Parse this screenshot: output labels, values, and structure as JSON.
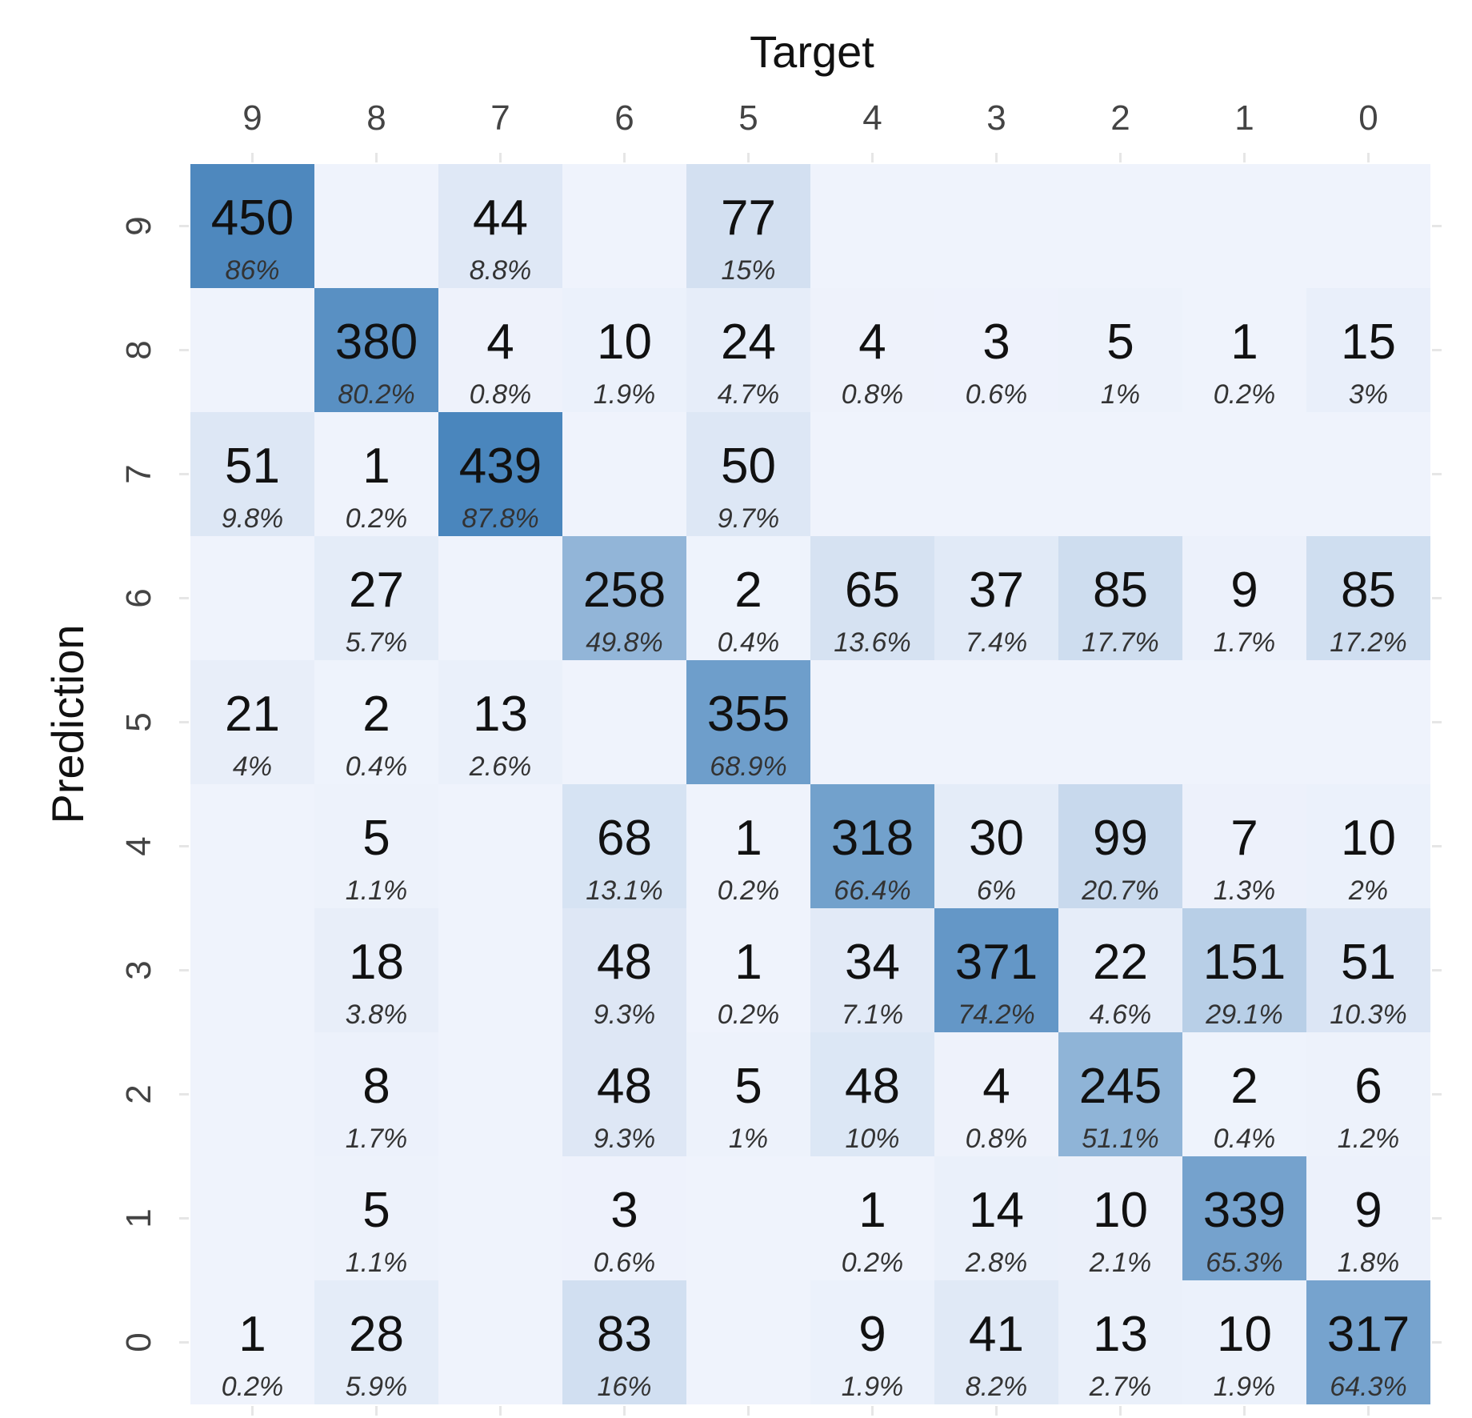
{
  "chart_data": {
    "type": "heatmap",
    "xlabel": "Target",
    "ylabel": "Prediction",
    "x_categories": [
      "9",
      "8",
      "7",
      "6",
      "5",
      "4",
      "3",
      "2",
      "1",
      "0"
    ],
    "y_categories": [
      "9",
      "8",
      "7",
      "6",
      "5",
      "4",
      "3",
      "2",
      "1",
      "0"
    ],
    "cells": [
      {
        "target": "9",
        "prediction": "9",
        "count": 450,
        "percent": "86%"
      },
      {
        "target": "7",
        "prediction": "9",
        "count": 44,
        "percent": "8.8%"
      },
      {
        "target": "5",
        "prediction": "9",
        "count": 77,
        "percent": "15%"
      },
      {
        "target": "8",
        "prediction": "8",
        "count": 380,
        "percent": "80.2%"
      },
      {
        "target": "7",
        "prediction": "8",
        "count": 4,
        "percent": "0.8%"
      },
      {
        "target": "6",
        "prediction": "8",
        "count": 10,
        "percent": "1.9%"
      },
      {
        "target": "5",
        "prediction": "8",
        "count": 24,
        "percent": "4.7%"
      },
      {
        "target": "4",
        "prediction": "8",
        "count": 4,
        "percent": "0.8%"
      },
      {
        "target": "3",
        "prediction": "8",
        "count": 3,
        "percent": "0.6%"
      },
      {
        "target": "2",
        "prediction": "8",
        "count": 5,
        "percent": "1%"
      },
      {
        "target": "1",
        "prediction": "8",
        "count": 1,
        "percent": "0.2%"
      },
      {
        "target": "0",
        "prediction": "8",
        "count": 15,
        "percent": "3%"
      },
      {
        "target": "9",
        "prediction": "7",
        "count": 51,
        "percent": "9.8%"
      },
      {
        "target": "8",
        "prediction": "7",
        "count": 1,
        "percent": "0.2%"
      },
      {
        "target": "7",
        "prediction": "7",
        "count": 439,
        "percent": "87.8%"
      },
      {
        "target": "5",
        "prediction": "7",
        "count": 50,
        "percent": "9.7%"
      },
      {
        "target": "8",
        "prediction": "6",
        "count": 27,
        "percent": "5.7%"
      },
      {
        "target": "6",
        "prediction": "6",
        "count": 258,
        "percent": "49.8%"
      },
      {
        "target": "5",
        "prediction": "6",
        "count": 2,
        "percent": "0.4%"
      },
      {
        "target": "4",
        "prediction": "6",
        "count": 65,
        "percent": "13.6%"
      },
      {
        "target": "3",
        "prediction": "6",
        "count": 37,
        "percent": "7.4%"
      },
      {
        "target": "2",
        "prediction": "6",
        "count": 85,
        "percent": "17.7%"
      },
      {
        "target": "1",
        "prediction": "6",
        "count": 9,
        "percent": "1.7%"
      },
      {
        "target": "0",
        "prediction": "6",
        "count": 85,
        "percent": "17.2%"
      },
      {
        "target": "9",
        "prediction": "5",
        "count": 21,
        "percent": "4%"
      },
      {
        "target": "8",
        "prediction": "5",
        "count": 2,
        "percent": "0.4%"
      },
      {
        "target": "7",
        "prediction": "5",
        "count": 13,
        "percent": "2.6%"
      },
      {
        "target": "5",
        "prediction": "5",
        "count": 355,
        "percent": "68.9%"
      },
      {
        "target": "8",
        "prediction": "4",
        "count": 5,
        "percent": "1.1%"
      },
      {
        "target": "6",
        "prediction": "4",
        "count": 68,
        "percent": "13.1%"
      },
      {
        "target": "5",
        "prediction": "4",
        "count": 1,
        "percent": "0.2%"
      },
      {
        "target": "4",
        "prediction": "4",
        "count": 318,
        "percent": "66.4%"
      },
      {
        "target": "3",
        "prediction": "4",
        "count": 30,
        "percent": "6%"
      },
      {
        "target": "2",
        "prediction": "4",
        "count": 99,
        "percent": "20.7%"
      },
      {
        "target": "1",
        "prediction": "4",
        "count": 7,
        "percent": "1.3%"
      },
      {
        "target": "0",
        "prediction": "4",
        "count": 10,
        "percent": "2%"
      },
      {
        "target": "8",
        "prediction": "3",
        "count": 18,
        "percent": "3.8%"
      },
      {
        "target": "6",
        "prediction": "3",
        "count": 48,
        "percent": "9.3%"
      },
      {
        "target": "5",
        "prediction": "3",
        "count": 1,
        "percent": "0.2%"
      },
      {
        "target": "4",
        "prediction": "3",
        "count": 34,
        "percent": "7.1%"
      },
      {
        "target": "3",
        "prediction": "3",
        "count": 371,
        "percent": "74.2%"
      },
      {
        "target": "2",
        "prediction": "3",
        "count": 22,
        "percent": "4.6%"
      },
      {
        "target": "1",
        "prediction": "3",
        "count": 151,
        "percent": "29.1%"
      },
      {
        "target": "0",
        "prediction": "3",
        "count": 51,
        "percent": "10.3%"
      },
      {
        "target": "8",
        "prediction": "2",
        "count": 8,
        "percent": "1.7%"
      },
      {
        "target": "6",
        "prediction": "2",
        "count": 48,
        "percent": "9.3%"
      },
      {
        "target": "5",
        "prediction": "2",
        "count": 5,
        "percent": "1%"
      },
      {
        "target": "4",
        "prediction": "2",
        "count": 48,
        "percent": "10%"
      },
      {
        "target": "3",
        "prediction": "2",
        "count": 4,
        "percent": "0.8%"
      },
      {
        "target": "2",
        "prediction": "2",
        "count": 245,
        "percent": "51.1%"
      },
      {
        "target": "1",
        "prediction": "2",
        "count": 2,
        "percent": "0.4%"
      },
      {
        "target": "0",
        "prediction": "2",
        "count": 6,
        "percent": "1.2%"
      },
      {
        "target": "8",
        "prediction": "1",
        "count": 5,
        "percent": "1.1%"
      },
      {
        "target": "6",
        "prediction": "1",
        "count": 3,
        "percent": "0.6%"
      },
      {
        "target": "4",
        "prediction": "1",
        "count": 1,
        "percent": "0.2%"
      },
      {
        "target": "3",
        "prediction": "1",
        "count": 14,
        "percent": "2.8%"
      },
      {
        "target": "2",
        "prediction": "1",
        "count": 10,
        "percent": "2.1%"
      },
      {
        "target": "1",
        "prediction": "1",
        "count": 339,
        "percent": "65.3%"
      },
      {
        "target": "0",
        "prediction": "1",
        "count": 9,
        "percent": "1.8%"
      },
      {
        "target": "9",
        "prediction": "0",
        "count": 1,
        "percent": "0.2%"
      },
      {
        "target": "8",
        "prediction": "0",
        "count": 28,
        "percent": "5.9%"
      },
      {
        "target": "6",
        "prediction": "0",
        "count": 83,
        "percent": "16%"
      },
      {
        "target": "4",
        "prediction": "0",
        "count": 9,
        "percent": "1.9%"
      },
      {
        "target": "3",
        "prediction": "0",
        "count": 41,
        "percent": "8.2%"
      },
      {
        "target": "2",
        "prediction": "0",
        "count": 13,
        "percent": "2.7%"
      },
      {
        "target": "1",
        "prediction": "0",
        "count": 10,
        "percent": "1.9%"
      },
      {
        "target": "0",
        "prediction": "0",
        "count": 317,
        "percent": "64.3%"
      }
    ],
    "color_scale": {
      "low": "#eff3fc",
      "high": "#4a86bd"
    },
    "grid": false,
    "legend": "none"
  }
}
